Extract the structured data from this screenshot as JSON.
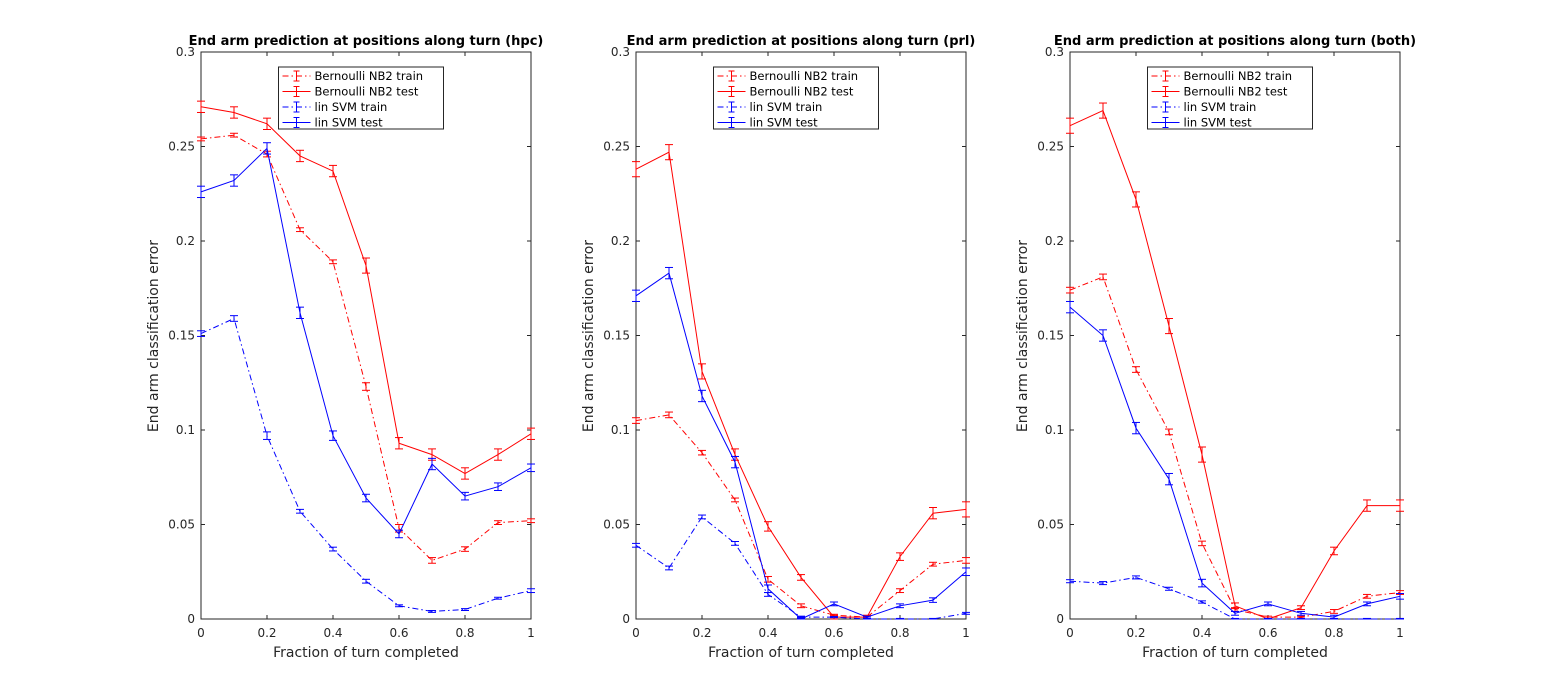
{
  "colors": {
    "nb": "#ff0000",
    "svm": "#0000ff",
    "axis": "#262626",
    "background": "#ffffff"
  },
  "chart_data": [
    {
      "type": "line",
      "title": "End arm prediction at positions along turn (hpc)",
      "xlabel": "Fraction of turn completed",
      "ylabel": "End arm classification error",
      "xlim": [
        0,
        1
      ],
      "ylim": [
        0,
        0.3
      ],
      "xticks": [
        "0",
        "0.2",
        "0.4",
        "0.6",
        "0.8",
        "1"
      ],
      "yticks": [
        "0",
        "0.05",
        "0.1",
        "0.15",
        "0.2",
        "0.25",
        "0.3"
      ],
      "legend_position": "top-center",
      "grid": false,
      "x": [
        0,
        0.1,
        0.2,
        0.3,
        0.4,
        0.5,
        0.6,
        0.7,
        0.8,
        0.9,
        1.0
      ],
      "series": [
        {
          "name": "Bernoulli NB2 train",
          "color": "nb",
          "dash": true,
          "values": [
            0.254,
            0.256,
            0.246,
            0.206,
            0.189,
            0.123,
            0.048,
            0.031,
            0.037,
            0.051,
            0.052
          ],
          "err": [
            0.001,
            0.001,
            0.0015,
            0.001,
            0.001,
            0.002,
            0.002,
            0.0015,
            0.0012,
            0.001,
            0.001
          ]
        },
        {
          "name": "Bernoulli NB2 test",
          "color": "nb",
          "dash": false,
          "values": [
            0.271,
            0.268,
            0.262,
            0.245,
            0.237,
            0.187,
            0.093,
            0.087,
            0.077,
            0.087,
            0.098
          ],
          "err": [
            0.003,
            0.003,
            0.003,
            0.003,
            0.003,
            0.004,
            0.003,
            0.003,
            0.003,
            0.003,
            0.003
          ]
        },
        {
          "name": "lin SVM train",
          "color": "svm",
          "dash": true,
          "values": [
            0.151,
            0.159,
            0.097,
            0.057,
            0.037,
            0.02,
            0.007,
            0.004,
            0.005,
            0.011,
            0.015
          ],
          "err": [
            0.0015,
            0.0015,
            0.002,
            0.001,
            0.001,
            0.001,
            0.0005,
            0.0005,
            0.0005,
            0.0005,
            0.001
          ]
        },
        {
          "name": "lin SVM test",
          "color": "svm",
          "dash": false,
          "values": [
            0.226,
            0.232,
            0.249,
            0.162,
            0.097,
            0.064,
            0.045,
            0.082,
            0.065,
            0.07,
            0.08
          ],
          "err": [
            0.003,
            0.003,
            0.003,
            0.003,
            0.0025,
            0.002,
            0.002,
            0.003,
            0.002,
            0.002,
            0.002
          ]
        }
      ]
    },
    {
      "type": "line",
      "title": "End arm prediction at positions along turn (prl)",
      "xlabel": "Fraction of turn completed",
      "ylabel": "End arm classification error",
      "xlim": [
        0,
        1
      ],
      "ylim": [
        0,
        0.3
      ],
      "xticks": [
        "0",
        "0.2",
        "0.4",
        "0.6",
        "0.8",
        "1"
      ],
      "yticks": [
        "0",
        "0.05",
        "0.1",
        "0.15",
        "0.2",
        "0.25",
        "0.3"
      ],
      "legend_position": "top-center",
      "grid": false,
      "x": [
        0,
        0.1,
        0.2,
        0.3,
        0.4,
        0.5,
        0.6,
        0.7,
        0.8,
        0.9,
        1.0
      ],
      "series": [
        {
          "name": "Bernoulli NB2 train",
          "color": "nb",
          "dash": true,
          "values": [
            0.105,
            0.108,
            0.088,
            0.063,
            0.021,
            0.007,
            0.002,
            0.001,
            0.015,
            0.029,
            0.031
          ],
          "err": [
            0.0015,
            0.0015,
            0.0012,
            0.001,
            0.0015,
            0.001,
            0.0005,
            0.0005,
            0.001,
            0.001,
            0.0015
          ]
        },
        {
          "name": "Bernoulli NB2 test",
          "color": "nb",
          "dash": false,
          "values": [
            0.238,
            0.247,
            0.131,
            0.087,
            0.049,
            0.022,
            0.001,
            0.001,
            0.033,
            0.056,
            0.058
          ],
          "err": [
            0.004,
            0.004,
            0.004,
            0.003,
            0.0025,
            0.0015,
            0.001,
            0.001,
            0.002,
            0.003,
            0.004
          ]
        },
        {
          "name": "lin SVM train",
          "color": "svm",
          "dash": true,
          "values": [
            0.039,
            0.027,
            0.054,
            0.04,
            0.013,
            0.001,
            0.001,
            0.0,
            0.0,
            0.0,
            0.003
          ],
          "err": [
            0.001,
            0.001,
            0.001,
            0.001,
            0.001,
            0.0005,
            0.0003,
            0.0003,
            0.0003,
            0.0003,
            0.0005
          ]
        },
        {
          "name": "lin SVM test",
          "color": "svm",
          "dash": false,
          "values": [
            0.171,
            0.183,
            0.118,
            0.083,
            0.016,
            0.0,
            0.008,
            0.001,
            0.007,
            0.01,
            0.025
          ],
          "err": [
            0.003,
            0.003,
            0.003,
            0.003,
            0.002,
            0.001,
            0.001,
            0.0005,
            0.001,
            0.0012,
            0.002
          ]
        }
      ]
    },
    {
      "type": "line",
      "title": "End arm prediction at positions along turn (both)",
      "xlabel": "Fraction of turn completed",
      "ylabel": "End arm classification error",
      "xlim": [
        0,
        1
      ],
      "ylim": [
        0,
        0.3
      ],
      "xticks": [
        "0",
        "0.2",
        "0.4",
        "0.6",
        "0.8",
        "1"
      ],
      "yticks": [
        "0",
        "0.05",
        "0.1",
        "0.15",
        "0.2",
        "0.25",
        "0.3"
      ],
      "legend_position": "top-center",
      "grid": false,
      "x": [
        0,
        0.1,
        0.2,
        0.3,
        0.4,
        0.5,
        0.6,
        0.7,
        0.8,
        0.9,
        1.0
      ],
      "series": [
        {
          "name": "Bernoulli NB2 train",
          "color": "nb",
          "dash": true,
          "values": [
            0.174,
            0.181,
            0.132,
            0.099,
            0.04,
            0.005,
            0.001,
            0.001,
            0.004,
            0.012,
            0.014
          ],
          "err": [
            0.0015,
            0.0015,
            0.0015,
            0.0015,
            0.0012,
            0.001,
            0.0005,
            0.0005,
            0.001,
            0.001,
            0.001
          ]
        },
        {
          "name": "Bernoulli NB2 test",
          "color": "nb",
          "dash": false,
          "values": [
            0.261,
            0.269,
            0.222,
            0.155,
            0.087,
            0.007,
            0.0,
            0.006,
            0.036,
            0.06,
            0.06
          ],
          "err": [
            0.004,
            0.004,
            0.004,
            0.004,
            0.004,
            0.0015,
            0.0005,
            0.001,
            0.002,
            0.003,
            0.003
          ]
        },
        {
          "name": "lin SVM train",
          "color": "svm",
          "dash": true,
          "values": [
            0.02,
            0.019,
            0.022,
            0.016,
            0.009,
            0.0,
            0.0,
            0.0,
            0.0,
            0.0,
            0.0
          ],
          "err": [
            0.0008,
            0.0008,
            0.0008,
            0.0008,
            0.0006,
            0.0003,
            0.0003,
            0.0003,
            0.0003,
            0.0003,
            0.0003
          ]
        },
        {
          "name": "lin SVM test",
          "color": "svm",
          "dash": false,
          "values": [
            0.165,
            0.15,
            0.101,
            0.074,
            0.019,
            0.003,
            0.008,
            0.003,
            0.001,
            0.008,
            0.012
          ],
          "err": [
            0.003,
            0.003,
            0.003,
            0.003,
            0.002,
            0.001,
            0.001,
            0.001,
            0.001,
            0.001,
            0.0015
          ]
        }
      ]
    }
  ]
}
